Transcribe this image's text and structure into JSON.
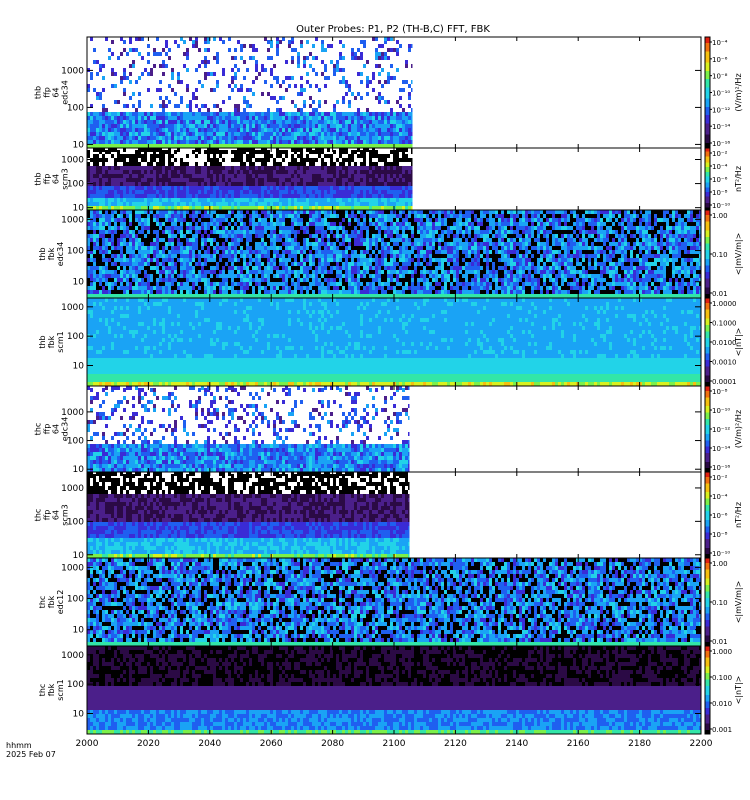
{
  "title": "Outer Probes: P1, P2 (TH-B,C) FFT, FBK",
  "time_label_top": "hhmm",
  "time_label_bottom": "2025 Feb 07",
  "colors": {
    "colormap": [
      "#000000",
      "#2b0a45",
      "#4b1f8a",
      "#3a2bd6",
      "#1f5ff0",
      "#1aa3f5",
      "#22d3e8",
      "#32e6a8",
      "#7cf04a",
      "#d8f020",
      "#f5c010",
      "#f07010",
      "#e02010"
    ],
    "background": "#ffffff",
    "axis": "#000000"
  },
  "chart_data": {
    "type": "heatmap",
    "x_axis": {
      "range": [
        2000,
        2200
      ],
      "ticks": [
        2000,
        2020,
        2040,
        2060,
        2080,
        2100,
        2120,
        2140,
        2160,
        2180,
        2200
      ],
      "tick_labels": [
        "2000",
        "2020",
        "2040",
        "2060",
        "2080",
        "2100",
        "2120",
        "2140",
        "2160",
        "2180",
        "2200"
      ]
    },
    "panels": [
      {
        "ylabel": [
          "thb",
          "ffp",
          "64",
          "edc34"
        ],
        "y_scale": "log",
        "y_range": [
          8,
          8000
        ],
        "y_ticks": [
          10,
          100,
          1000
        ],
        "y_tick_labels": [
          "10",
          "100",
          "1000"
        ],
        "data_end": 2106,
        "colorbar": {
          "label": "(V/m)²/Hz",
          "tick_labels": [
            "10⁻⁴",
            "10⁻⁶",
            "10⁻⁸",
            "10⁻¹⁰",
            "10⁻¹²",
            "10⁻¹⁴",
            "10⁻¹⁶"
          ]
        }
      },
      {
        "ylabel": [
          "thb",
          "ffp",
          "64",
          "scm3"
        ],
        "y_scale": "log",
        "y_range": [
          8,
          3000
        ],
        "y_ticks": [
          10,
          100,
          1000
        ],
        "y_tick_labels": [
          "10",
          "100",
          "1000"
        ],
        "data_end": 2106,
        "colorbar": {
          "label": "nT²/Hz",
          "tick_labels": [
            "10⁻²",
            "10⁻⁴",
            "10⁻⁶",
            "10⁻⁸",
            "10⁻¹⁰"
          ]
        }
      },
      {
        "ylabel": [
          "thb",
          "fbk",
          "edc34"
        ],
        "y_scale": "log",
        "y_range": [
          3,
          2000
        ],
        "y_ticks": [
          10,
          100,
          1000
        ],
        "y_tick_labels": [
          "10",
          "100",
          "1000"
        ],
        "data_end": 2200,
        "colorbar": {
          "label": "<|mV/m|>",
          "tick_labels": [
            "1.00",
            "0.10",
            "0.01"
          ]
        }
      },
      {
        "ylabel": [
          "thb",
          "fbk",
          "scm1"
        ],
        "y_scale": "log",
        "y_range": [
          2,
          2000
        ],
        "y_ticks": [
          10,
          100,
          1000
        ],
        "y_tick_labels": [
          "10",
          "100",
          "1000"
        ],
        "data_end": 2200,
        "colorbar": {
          "label": "<|nT|>",
          "tick_labels": [
            "1.0000",
            "0.1000",
            "0.0100",
            "0.0010",
            "0.0001"
          ]
        }
      },
      {
        "ylabel": [
          "thc",
          "ffp",
          "64",
          "edc34"
        ],
        "y_scale": "log",
        "y_range": [
          8,
          8000
        ],
        "y_ticks": [
          10,
          100,
          1000
        ],
        "y_tick_labels": [
          "10",
          "100",
          "1000"
        ],
        "data_end": 2105,
        "colorbar": {
          "label": "(V/m)²/Hz",
          "tick_labels": [
            "10⁻⁸",
            "10⁻¹⁰",
            "10⁻¹²",
            "10⁻¹⁴",
            "10⁻¹⁶"
          ]
        }
      },
      {
        "ylabel": [
          "thc",
          "ffp",
          "64",
          "scm3"
        ],
        "y_scale": "log",
        "y_range": [
          8,
          3000
        ],
        "y_ticks": [
          10,
          100,
          1000
        ],
        "y_tick_labels": [
          "10",
          "100",
          "1000"
        ],
        "data_end": 2105,
        "colorbar": {
          "label": "nT²/Hz",
          "tick_labels": [
            "10⁻²",
            "10⁻⁴",
            "10⁻⁶",
            "10⁻⁸",
            "10⁻¹⁰"
          ]
        }
      },
      {
        "ylabel": [
          "thc",
          "fbk",
          "edc12"
        ],
        "y_scale": "log",
        "y_range": [
          3,
          2000
        ],
        "y_ticks": [
          10,
          100,
          1000
        ],
        "y_tick_labels": [
          "10",
          "100",
          "1000"
        ],
        "data_end": 2200,
        "colorbar": {
          "label": "<|mV/m|>",
          "tick_labels": [
            "1.00",
            "0.10",
            "0.01"
          ]
        }
      },
      {
        "ylabel": [
          "thc",
          "fbk",
          "scm1"
        ],
        "y_scale": "log",
        "y_range": [
          2,
          2000
        ],
        "y_ticks": [
          10,
          100,
          1000
        ],
        "y_tick_labels": [
          "10",
          "100",
          "1000"
        ],
        "data_end": 2200,
        "colorbar": {
          "label": "<|nT|>",
          "tick_labels": [
            "1.000",
            "0.100",
            "0.010",
            "0.001"
          ]
        }
      }
    ]
  }
}
